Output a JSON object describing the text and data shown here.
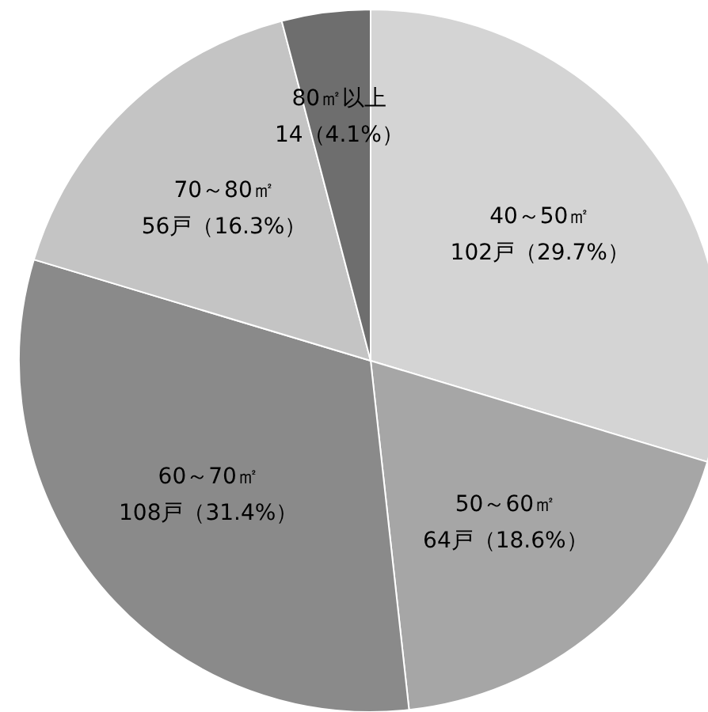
{
  "chart_data": {
    "type": "pie",
    "categories": [
      "40～50㎡",
      "50～60㎡",
      "60～70㎡",
      "70～80㎡",
      "80㎡以上"
    ],
    "values": [
      102,
      64,
      108,
      56,
      14
    ],
    "colors": [
      "#d4d4d4",
      "#a6a6a6",
      "#8a8a8a",
      "#c4c4c4",
      "#6e6e6e"
    ],
    "value_labels": [
      "102戸（29.7%）",
      "64戸（18.6%）",
      "108戸（31.4%）",
      "56戸（16.3%）",
      "14（4.1%）"
    ]
  }
}
